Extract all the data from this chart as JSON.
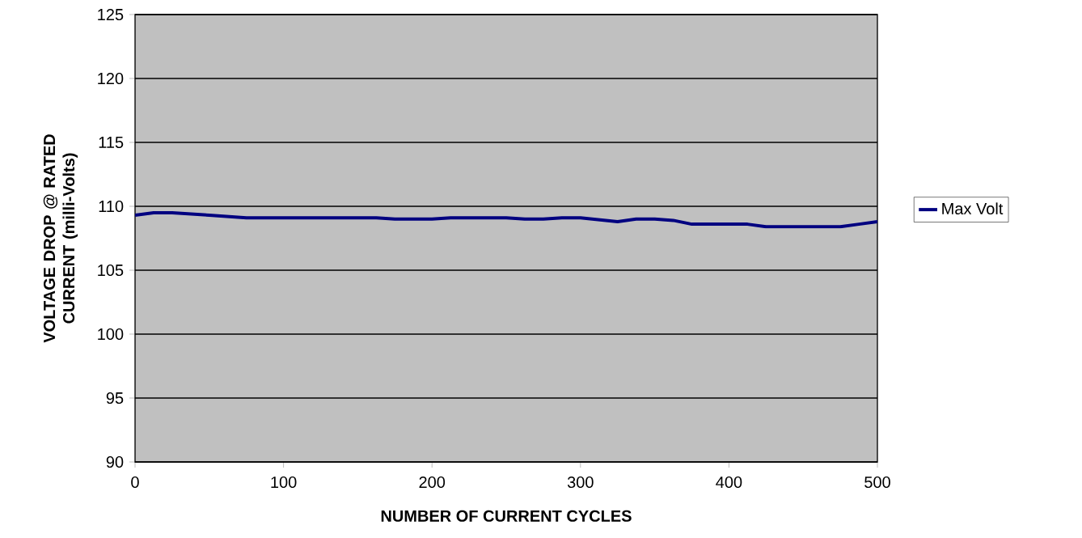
{
  "chart_data": {
    "type": "line",
    "xlabel": "NUMBER OF CURRENT CYCLES",
    "ylabel": "VOLTAGE DROP @ RATED CURRENT (milli-Volts)",
    "x": [
      0,
      12.5,
      25,
      50,
      75,
      100,
      125,
      150,
      162.5,
      175,
      200,
      212.5,
      225,
      250,
      262.5,
      275,
      287.5,
      300,
      325,
      337.5,
      350,
      362.5,
      375,
      400,
      412.5,
      425,
      450,
      475,
      487.5,
      500
    ],
    "series": [
      {
        "name": "Max Volt",
        "color": "#000080",
        "values": [
          109.3,
          109.5,
          109.5,
          109.3,
          109.1,
          109.1,
          109.1,
          109.1,
          109.1,
          109.0,
          109.0,
          109.1,
          109.1,
          109.1,
          109.0,
          109.0,
          109.1,
          109.1,
          108.8,
          109.0,
          109.0,
          108.9,
          108.6,
          108.6,
          108.6,
          108.4,
          108.4,
          108.4,
          108.6,
          108.8
        ]
      }
    ],
    "xlim": [
      0,
      500
    ],
    "xticks": [
      0,
      100,
      200,
      300,
      400,
      500
    ],
    "ylim": [
      90,
      125
    ],
    "yticks": [
      90,
      95,
      100,
      105,
      110,
      115,
      120,
      125
    ],
    "grid": "y",
    "legend": "right",
    "marker": "none",
    "line_style": "solid"
  }
}
